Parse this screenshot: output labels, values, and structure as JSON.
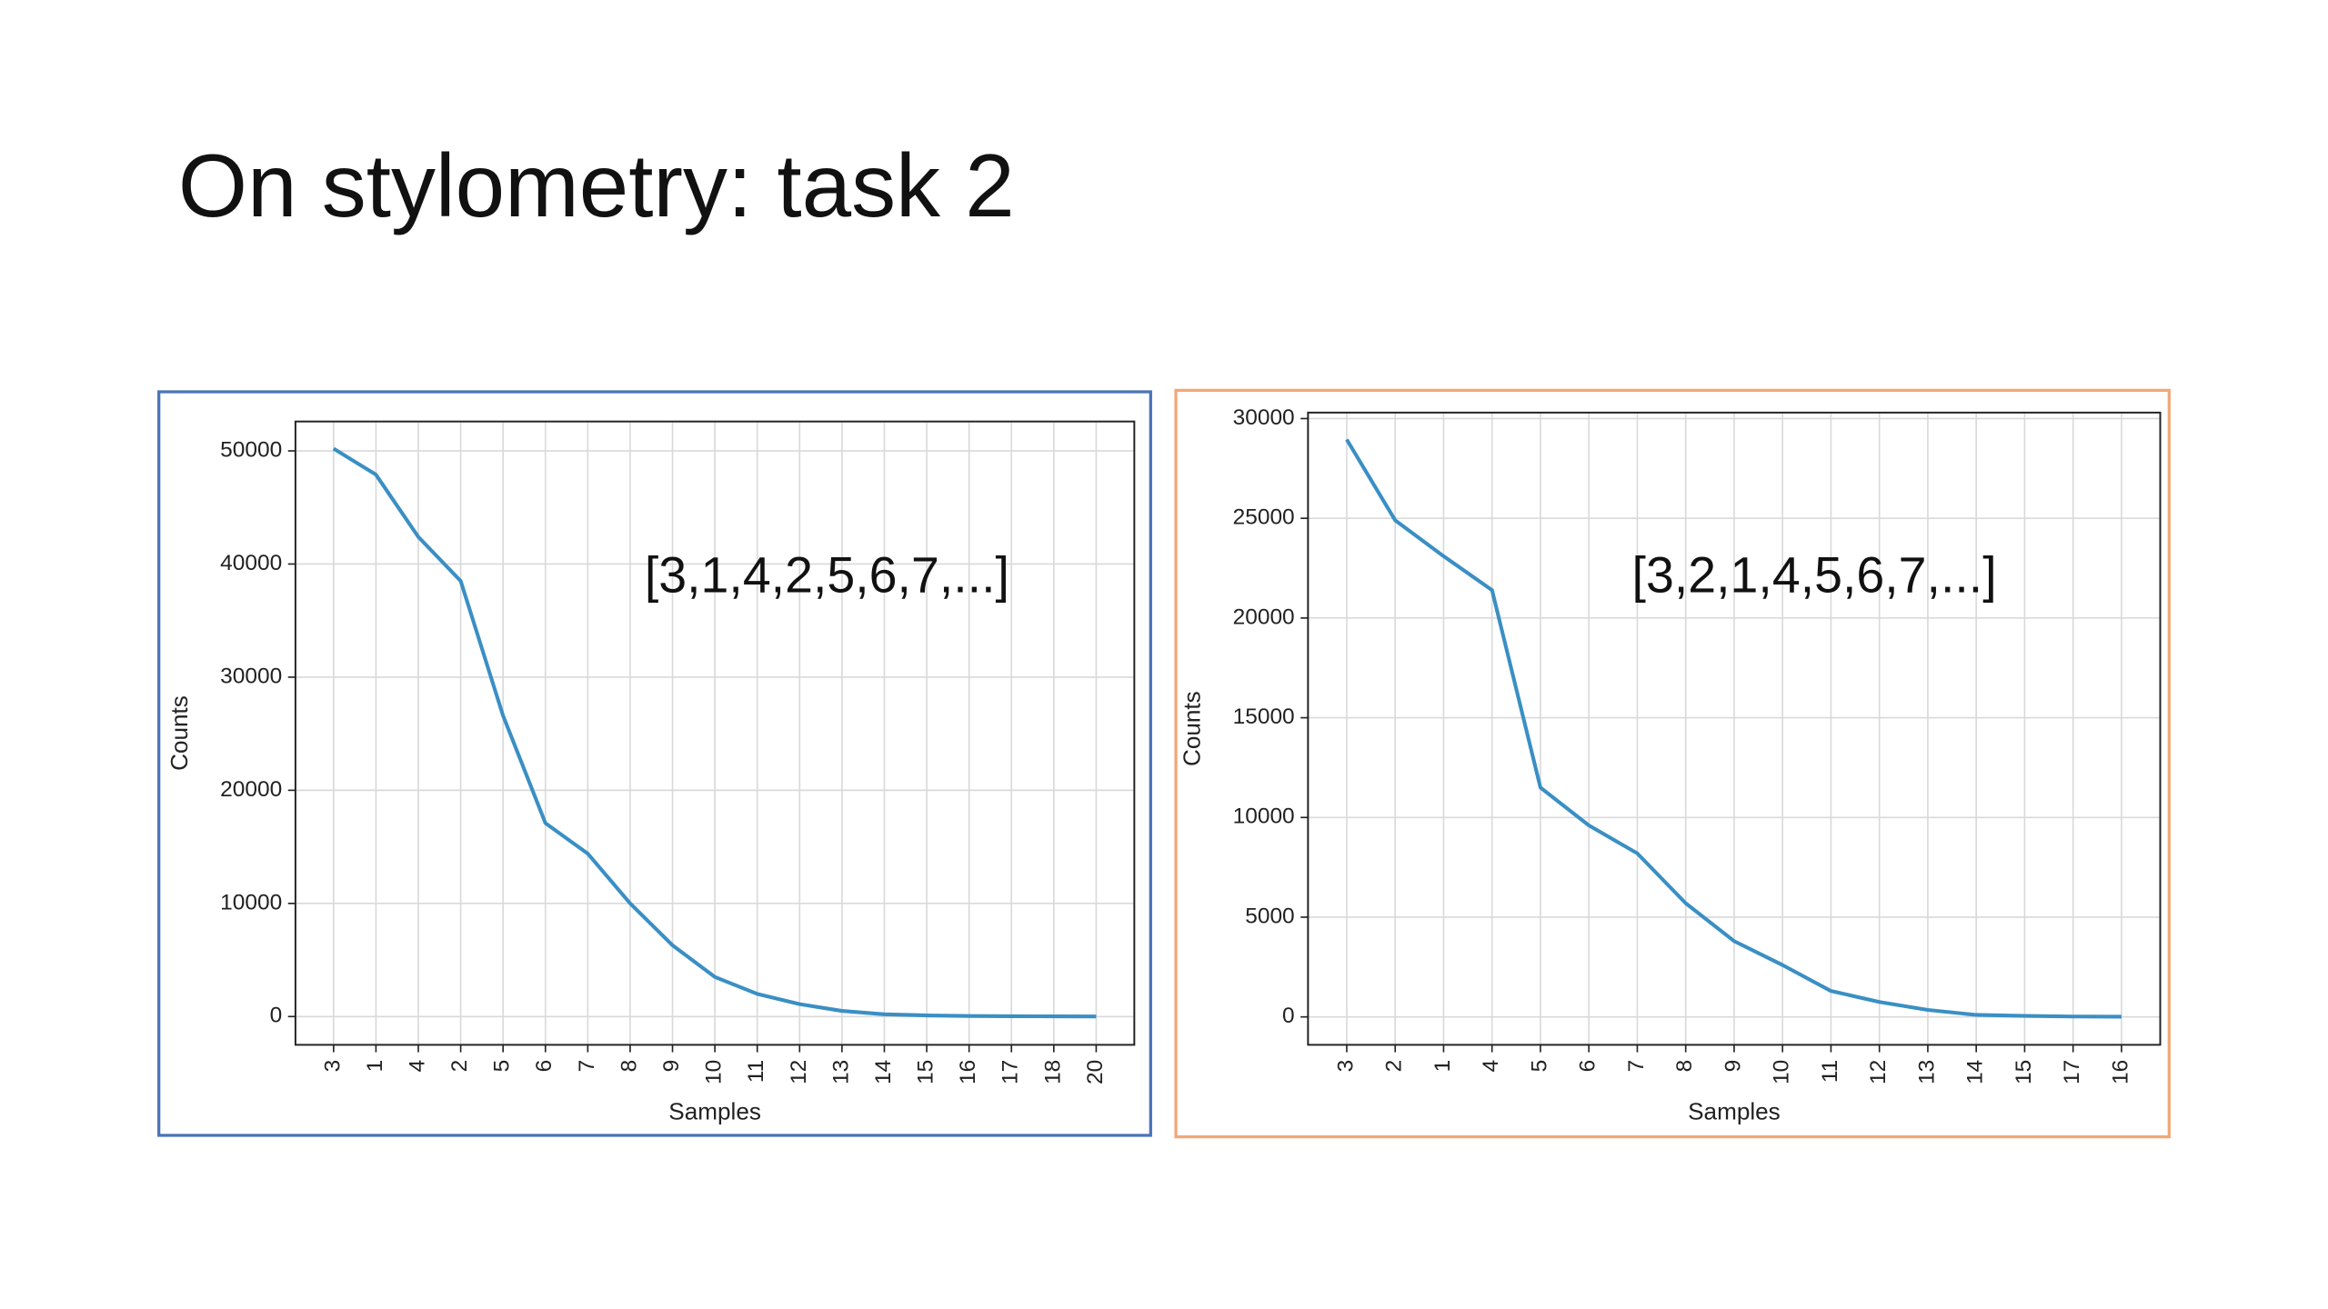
{
  "title": "On stylometry: task 2",
  "chart_data": [
    {
      "type": "line",
      "annotation": "[3,1,4,2,5,6,7,...]",
      "xlabel": "Samples",
      "ylabel": "Counts",
      "categories": [
        "3",
        "1",
        "4",
        "2",
        "5",
        "6",
        "7",
        "8",
        "9",
        "10",
        "11",
        "12",
        "13",
        "14",
        "15",
        "16",
        "17",
        "18",
        "20"
      ],
      "values": [
        50200,
        47900,
        42400,
        38500,
        26600,
        17100,
        14400,
        10000,
        6300,
        3500,
        2000,
        1100,
        500,
        200,
        100,
        50,
        30,
        20,
        10
      ],
      "color": "#3a8fc4",
      "frame_color": "#4a73b8",
      "ylim": [
        -2500,
        52600
      ],
      "yticks": [
        0,
        10000,
        20000,
        30000,
        40000,
        50000
      ],
      "grid": true
    },
    {
      "type": "line",
      "annotation": "[3,2,1,4,5,6,7,...]",
      "xlabel": "Samples",
      "ylabel": "Counts",
      "categories": [
        "3",
        "2",
        "1",
        "4",
        "5",
        "6",
        "7",
        "8",
        "9",
        "10",
        "11",
        "12",
        "13",
        "14",
        "15",
        "17",
        "16"
      ],
      "values": [
        28950,
        24900,
        23100,
        21400,
        11500,
        9600,
        8200,
        5700,
        3800,
        2600,
        1300,
        750,
        350,
        100,
        50,
        20,
        10
      ],
      "color": "#3a8fc4",
      "frame_color": "#f0a878",
      "ylim": [
        -1400,
        30300
      ],
      "yticks": [
        0,
        5000,
        10000,
        15000,
        20000,
        25000,
        30000
      ],
      "grid": true
    }
  ]
}
